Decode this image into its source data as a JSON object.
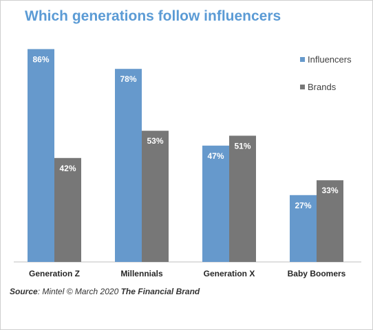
{
  "chart_data": {
    "type": "bar",
    "title": "Which generations follow influencers",
    "categories": [
      "Generation Z",
      "Millennials",
      "Generation X",
      "Baby Boomers"
    ],
    "series": [
      {
        "name": "Influencers",
        "values": [
          86,
          78,
          47,
          27
        ],
        "labels": [
          "86%",
          "78%",
          "47%",
          "27%"
        ]
      },
      {
        "name": "Brands",
        "values": [
          42,
          53,
          51,
          33
        ],
        "labels": [
          "42%",
          "53%",
          "51%",
          "33%"
        ]
      }
    ],
    "ylim": [
      0,
      100
    ],
    "grid": false,
    "legend": "top-right"
  },
  "colors": {
    "influencers": "#6699cc",
    "brands": "#777777",
    "title": "#5b9bd5",
    "axis": "#bfbfbf"
  },
  "source": {
    "label": "Source",
    "text": ": Mintel ©  March 2020 ",
    "brand": "The Financial Brand"
  }
}
